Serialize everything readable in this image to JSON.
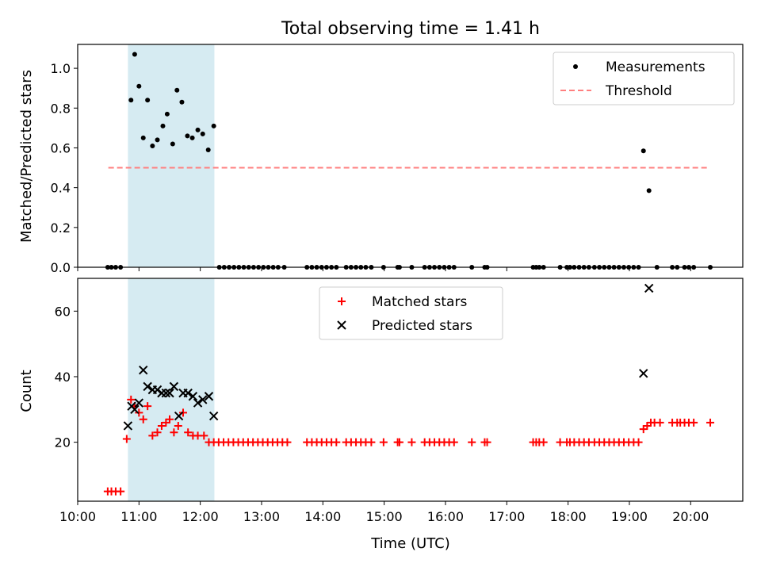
{
  "chart_data": {
    "type": "scatter",
    "title": "Total observing time = 1.41 h",
    "xlabel": "Time (UTC)",
    "x_unit": "hours UTC",
    "xlim": [
      10.0,
      20.85
    ],
    "xtick_values": [
      10,
      11,
      12,
      13,
      14,
      15,
      16,
      17,
      18,
      19,
      20
    ],
    "xtick_labels": [
      "10:00",
      "11:00",
      "12:00",
      "13:00",
      "14:00",
      "15:00",
      "16:00",
      "17:00",
      "18:00",
      "19:00",
      "20:00"
    ],
    "shaded_span": [
      10.82,
      12.23
    ],
    "panels": [
      {
        "ylabel": "Matched/Predicted stars",
        "ylim": [
          0,
          1.12
        ],
        "yticks": [
          0.0,
          0.2,
          0.4,
          0.6,
          0.8,
          1.0
        ],
        "ytick_labels": [
          "0.0",
          "0.2",
          "0.4",
          "0.6",
          "0.8",
          "1.0"
        ],
        "legend_loc": "upper right",
        "series": [
          {
            "name": "Measurements",
            "marker": "dot",
            "color": "#000000",
            "points": [
              [
                10.49,
                0
              ],
              [
                10.55,
                0
              ],
              [
                10.62,
                0
              ],
              [
                10.7,
                0
              ],
              [
                10.87,
                0.84
              ],
              [
                10.93,
                1.07
              ],
              [
                11.0,
                0.91
              ],
              [
                11.07,
                0.65
              ],
              [
                11.14,
                0.84
              ],
              [
                11.22,
                0.61
              ],
              [
                11.3,
                0.64
              ],
              [
                11.39,
                0.71
              ],
              [
                11.46,
                0.77
              ],
              [
                11.55,
                0.62
              ],
              [
                11.62,
                0.89
              ],
              [
                11.7,
                0.83
              ],
              [
                11.79,
                0.66
              ],
              [
                11.87,
                0.65
              ],
              [
                11.96,
                0.69
              ],
              [
                12.04,
                0.67
              ],
              [
                12.13,
                0.59
              ],
              [
                12.22,
                0.71
              ],
              [
                12.31,
                0
              ],
              [
                12.39,
                0
              ],
              [
                12.47,
                0
              ],
              [
                12.55,
                0
              ],
              [
                12.63,
                0
              ],
              [
                12.71,
                0
              ],
              [
                12.79,
                0
              ],
              [
                12.87,
                0
              ],
              [
                12.95,
                0
              ],
              [
                13.03,
                0
              ],
              [
                13.11,
                0
              ],
              [
                13.19,
                0
              ],
              [
                13.27,
                0
              ],
              [
                13.37,
                0
              ],
              [
                13.74,
                0
              ],
              [
                13.82,
                0
              ],
              [
                13.9,
                0
              ],
              [
                13.98,
                0
              ],
              [
                14.06,
                0
              ],
              [
                14.14,
                0
              ],
              [
                14.22,
                0
              ],
              [
                14.38,
                0
              ],
              [
                14.46,
                0
              ],
              [
                14.54,
                0
              ],
              [
                14.62,
                0
              ],
              [
                14.7,
                0
              ],
              [
                14.79,
                0
              ],
              [
                14.99,
                0
              ],
              [
                15.22,
                0
              ],
              [
                15.25,
                0
              ],
              [
                15.45,
                0
              ],
              [
                15.66,
                0
              ],
              [
                15.74,
                0
              ],
              [
                15.82,
                0
              ],
              [
                15.9,
                0
              ],
              [
                15.98,
                0
              ],
              [
                16.06,
                0
              ],
              [
                16.14,
                0
              ],
              [
                16.43,
                0
              ],
              [
                16.64,
                0
              ],
              [
                16.68,
                0
              ],
              [
                17.43,
                0
              ],
              [
                17.48,
                0
              ],
              [
                17.53,
                0
              ],
              [
                17.6,
                0
              ],
              [
                17.87,
                0
              ],
              [
                17.98,
                0
              ],
              [
                18.03,
                0
              ],
              [
                18.1,
                0
              ],
              [
                18.18,
                0
              ],
              [
                18.26,
                0
              ],
              [
                18.34,
                0
              ],
              [
                18.43,
                0
              ],
              [
                18.51,
                0
              ],
              [
                18.59,
                0
              ],
              [
                18.67,
                0
              ],
              [
                18.75,
                0
              ],
              [
                18.83,
                0
              ],
              [
                18.91,
                0
              ],
              [
                18.99,
                0
              ],
              [
                19.07,
                0
              ],
              [
                19.15,
                0
              ],
              [
                19.23,
                0.585
              ],
              [
                19.32,
                0.385
              ],
              [
                19.45,
                0
              ],
              [
                19.7,
                0
              ],
              [
                19.78,
                0
              ],
              [
                19.9,
                0
              ],
              [
                19.97,
                0
              ],
              [
                20.05,
                0
              ],
              [
                20.32,
                0
              ]
            ]
          },
          {
            "name": "Threshold",
            "line_style": "dashed",
            "color": "#ff7f7f",
            "x": [
              10.5,
              20.3
            ],
            "y": 0.5
          }
        ]
      },
      {
        "ylabel": "Count",
        "ylim": [
          2,
          70
        ],
        "yticks": [
          20,
          40,
          60
        ],
        "ytick_labels": [
          "20",
          "40",
          "60"
        ],
        "legend_loc": "upper center",
        "series": [
          {
            "name": "Matched stars",
            "marker": "plus",
            "color": "#ff0000",
            "points": [
              [
                10.49,
                5
              ],
              [
                10.55,
                5
              ],
              [
                10.62,
                5
              ],
              [
                10.7,
                5
              ],
              [
                10.8,
                21
              ],
              [
                10.87,
                33
              ],
              [
                10.93,
                31
              ],
              [
                11.0,
                29
              ],
              [
                11.07,
                27
              ],
              [
                11.14,
                31
              ],
              [
                11.22,
                22
              ],
              [
                11.3,
                23
              ],
              [
                11.37,
                25
              ],
              [
                11.44,
                26
              ],
              [
                11.5,
                27
              ],
              [
                11.57,
                23
              ],
              [
                11.64,
                25
              ],
              [
                11.72,
                29
              ],
              [
                11.8,
                23
              ],
              [
                11.88,
                22
              ],
              [
                11.96,
                22
              ],
              [
                12.06,
                22
              ],
              [
                12.14,
                20
              ],
              [
                12.22,
                20
              ],
              [
                12.3,
                20
              ],
              [
                12.38,
                20
              ],
              [
                12.46,
                20
              ],
              [
                12.54,
                20
              ],
              [
                12.62,
                20
              ],
              [
                12.7,
                20
              ],
              [
                12.78,
                20
              ],
              [
                12.86,
                20
              ],
              [
                12.94,
                20
              ],
              [
                13.02,
                20
              ],
              [
                13.1,
                20
              ],
              [
                13.18,
                20
              ],
              [
                13.26,
                20
              ],
              [
                13.34,
                20
              ],
              [
                13.42,
                20
              ],
              [
                13.74,
                20
              ],
              [
                13.82,
                20
              ],
              [
                13.9,
                20
              ],
              [
                13.98,
                20
              ],
              [
                14.06,
                20
              ],
              [
                14.14,
                20
              ],
              [
                14.22,
                20
              ],
              [
                14.38,
                20
              ],
              [
                14.46,
                20
              ],
              [
                14.54,
                20
              ],
              [
                14.62,
                20
              ],
              [
                14.7,
                20
              ],
              [
                14.79,
                20
              ],
              [
                14.99,
                20
              ],
              [
                15.22,
                20
              ],
              [
                15.25,
                20
              ],
              [
                15.45,
                20
              ],
              [
                15.66,
                20
              ],
              [
                15.74,
                20
              ],
              [
                15.82,
                20
              ],
              [
                15.9,
                20
              ],
              [
                15.98,
                20
              ],
              [
                16.06,
                20
              ],
              [
                16.14,
                20
              ],
              [
                16.43,
                20
              ],
              [
                16.64,
                20
              ],
              [
                16.68,
                20
              ],
              [
                17.43,
                20
              ],
              [
                17.48,
                20
              ],
              [
                17.53,
                20
              ],
              [
                17.6,
                20
              ],
              [
                17.87,
                20
              ],
              [
                17.98,
                20
              ],
              [
                18.03,
                20
              ],
              [
                18.1,
                20
              ],
              [
                18.18,
                20
              ],
              [
                18.26,
                20
              ],
              [
                18.34,
                20
              ],
              [
                18.43,
                20
              ],
              [
                18.51,
                20
              ],
              [
                18.59,
                20
              ],
              [
                18.67,
                20
              ],
              [
                18.75,
                20
              ],
              [
                18.83,
                20
              ],
              [
                18.91,
                20
              ],
              [
                18.99,
                20
              ],
              [
                19.07,
                20
              ],
              [
                19.15,
                20
              ],
              [
                19.23,
                24
              ],
              [
                19.29,
                25
              ],
              [
                19.35,
                26
              ],
              [
                19.41,
                26
              ],
              [
                19.5,
                26
              ],
              [
                19.7,
                26
              ],
              [
                19.78,
                26
              ],
              [
                19.83,
                26
              ],
              [
                19.9,
                26
              ],
              [
                19.97,
                26
              ],
              [
                20.05,
                26
              ],
              [
                20.32,
                26
              ]
            ]
          },
          {
            "name": "Predicted stars",
            "marker": "cross",
            "color": "#000000",
            "points": [
              [
                10.82,
                25
              ],
              [
                10.88,
                31
              ],
              [
                10.93,
                30
              ],
              [
                11.0,
                32
              ],
              [
                11.07,
                42
              ],
              [
                11.14,
                37
              ],
              [
                11.22,
                36
              ],
              [
                11.3,
                36
              ],
              [
                11.37,
                35
              ],
              [
                11.44,
                35
              ],
              [
                11.5,
                35
              ],
              [
                11.57,
                37
              ],
              [
                11.65,
                28
              ],
              [
                11.72,
                35
              ],
              [
                11.8,
                35
              ],
              [
                11.88,
                34
              ],
              [
                11.96,
                32
              ],
              [
                12.04,
                33
              ],
              [
                12.14,
                34
              ],
              [
                12.22,
                28
              ],
              [
                19.23,
                41
              ],
              [
                19.32,
                67
              ]
            ]
          }
        ]
      }
    ]
  }
}
